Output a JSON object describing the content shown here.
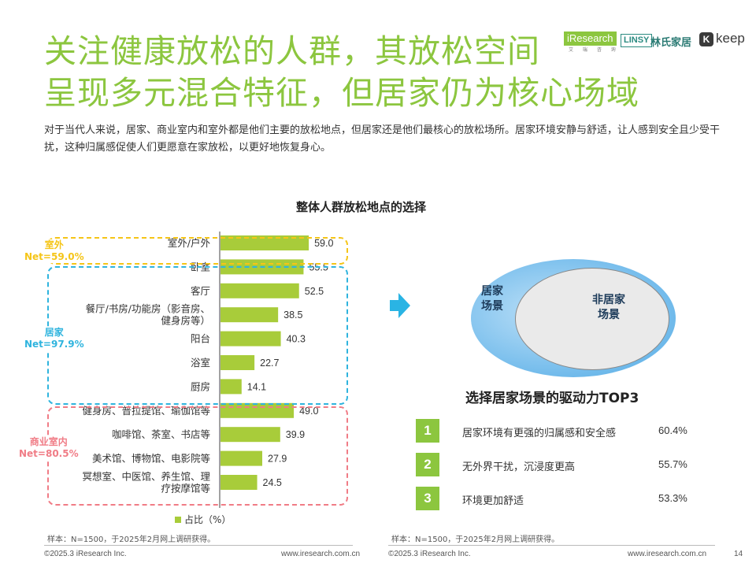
{
  "header": {
    "title_line1": "关注健康放松的人群，其放松空间",
    "title_line2": "呈现多元混合特征，但居家仍为核心场域",
    "logos": {
      "iresearch": "iResearch",
      "iresearch_sub": "艾 瑞 咨 询",
      "linsy": "LINSY",
      "lin": "林氏家居",
      "keep_icon": "K",
      "keep": "keep"
    },
    "intro": "对于当代人来说，居家、商业室内和室外都是他们主要的放松地点，但居家还是他们最核心的放松场所。居家环境安静与舒适，让人感到安全且少受干扰，这种归属感促使人们更愿意在家放松，以更好地恢复身心。"
  },
  "chart_data": {
    "type": "bar",
    "orientation": "horizontal",
    "title": "整体人群放松地点的选择",
    "categories": [
      "室外/户外",
      "卧室",
      "客厅",
      "餐厅/书房/功能房（影音房、健身房等）",
      "阳台",
      "浴室",
      "厨房",
      "健身房、普拉提馆、瑜伽馆等",
      "咖啡馆、茶室、书店等",
      "美术馆、博物馆、电影院等",
      "冥想室、中医馆、养生馆、理疗按摩馆等"
    ],
    "category_lines": [
      [
        "室外/户外"
      ],
      [
        "卧室"
      ],
      [
        "客厅"
      ],
      [
        "餐厅/书房/功能房（影音房、",
        "健身房等）"
      ],
      [
        "阳台"
      ],
      [
        "浴室"
      ],
      [
        "厨房"
      ],
      [
        "健身房、普拉提馆、瑜伽馆等"
      ],
      [
        "咖啡馆、茶室、书店等"
      ],
      [
        "美术馆、博物馆、电影院等"
      ],
      [
        "冥想室、中医馆、养生馆、理",
        "疗按摩馆等"
      ]
    ],
    "series": [
      {
        "name": "占比（%）",
        "values": [
          59.0,
          55.5,
          52.5,
          38.5,
          40.3,
          22.7,
          14.1,
          49.0,
          39.9,
          27.9,
          24.5
        ]
      }
    ],
    "value_labels": [
      "59.0",
      "55.5",
      "52.5",
      "38.5",
      "40.3",
      "22.7",
      "14.1",
      "49.0",
      "39.9",
      "27.9",
      "24.5"
    ],
    "xlim": [
      0,
      100
    ],
    "groups": [
      {
        "name": "室外",
        "net": "Net=59.0%",
        "color": "#f5c518"
      },
      {
        "name": "居家",
        "net": "Net=97.9%",
        "color": "#2fb4de"
      },
      {
        "name": "商业室内",
        "net": "Net=80.5%",
        "color": "#f07c86"
      }
    ],
    "legend_position": "bottom",
    "bar_color": "#a8cc3a"
  },
  "venn": {
    "home": "居家\n场景",
    "nonhome": "非居家\n场景"
  },
  "top3": {
    "title": "选择居家场景的驱动力TOP3",
    "items": [
      {
        "rank": "1",
        "text": "居家环境有更强的归属感和安全感",
        "value": "60.4%"
      },
      {
        "rank": "2",
        "text": "无外界干扰，沉浸度更高",
        "value": "55.7%"
      },
      {
        "rank": "3",
        "text": "环境更加舒适",
        "value": "53.3%"
      }
    ]
  },
  "notes": {
    "left": "样本：N=1500，于2025年2月网上调研获得。",
    "right": "样本：N=1500，于2025年2月网上调研获得。"
  },
  "footer": {
    "copyright_left": "©2025.3 iResearch Inc.",
    "url_left": "www.iresearch.com.cn",
    "copyright_right": "©2025.3 iResearch Inc.",
    "url_right": "www.iresearch.com.cn",
    "page_number": "14"
  }
}
